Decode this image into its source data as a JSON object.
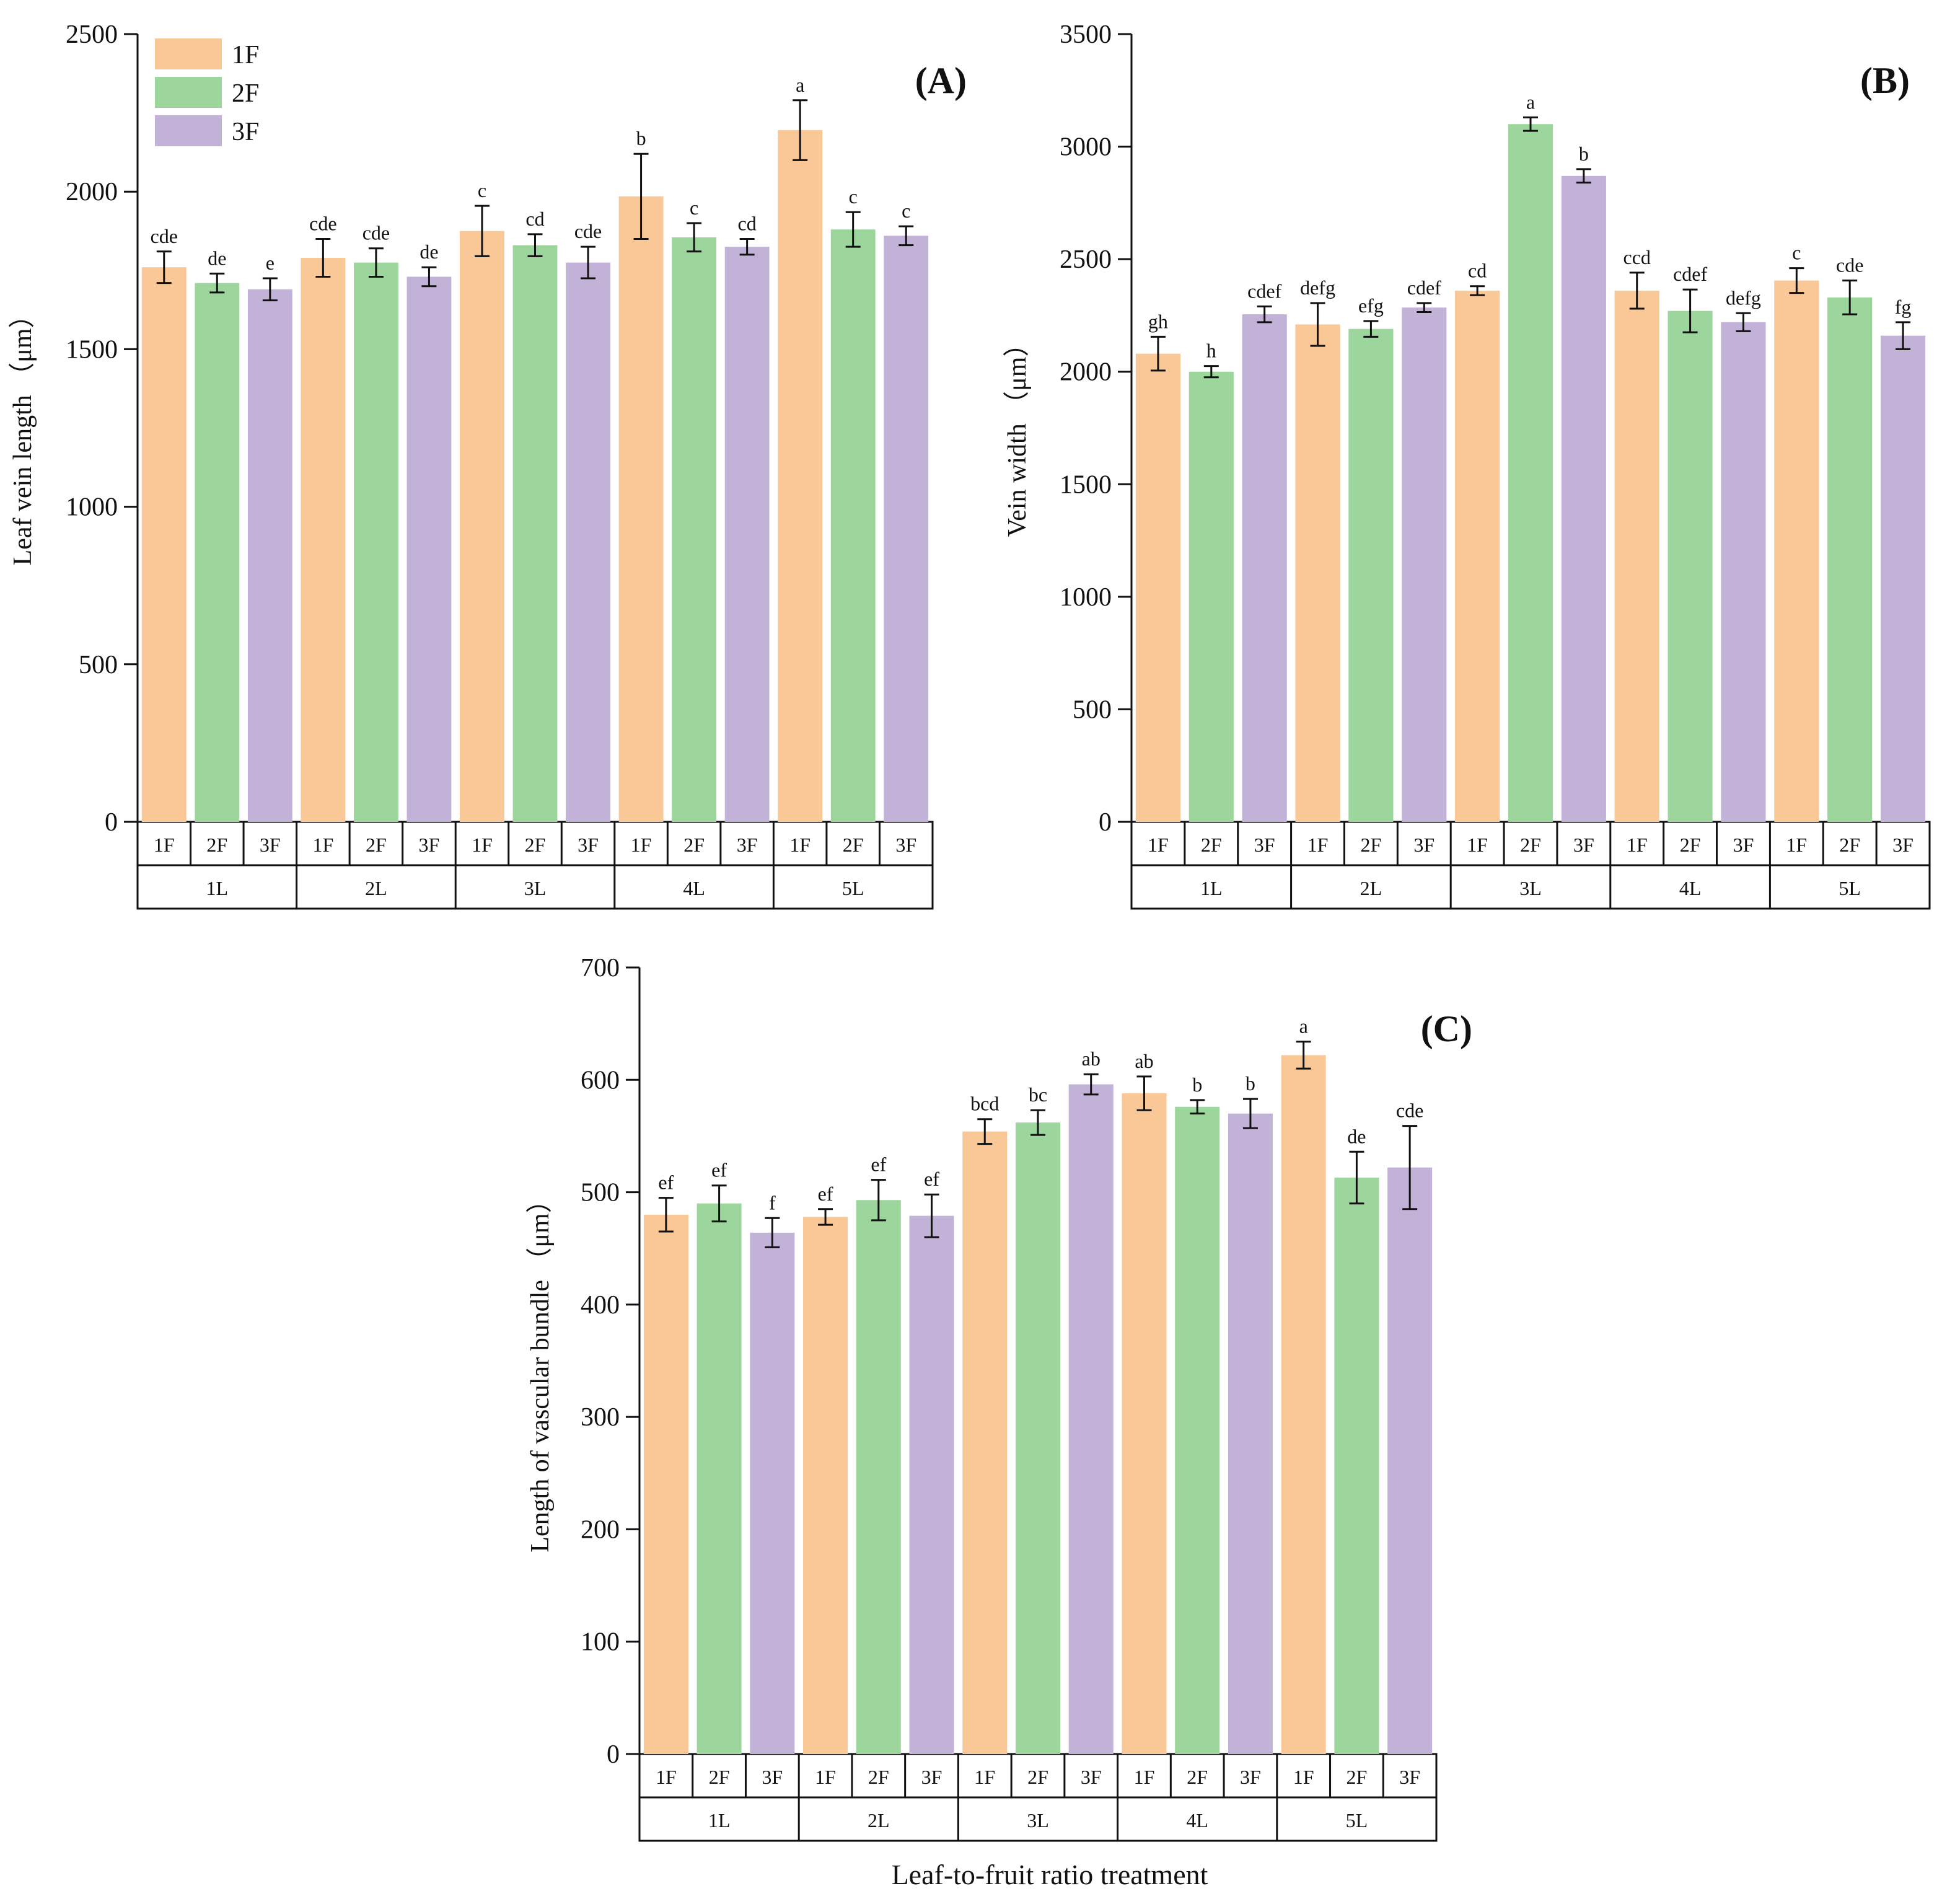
{
  "colors": {
    "1F": "#fac796",
    "2F": "#9cd69c",
    "3F": "#c3b2d8",
    "axis": "#111111"
  },
  "legend": [
    "1F",
    "2F",
    "3F"
  ],
  "x_title": "Leaf-to-fruit ratio treatment",
  "chart_data": [
    {
      "id": "A",
      "type": "bar",
      "panel_label": "(A)",
      "ylabel": "Leaf vein length （μm）",
      "ylim": [
        0,
        2500
      ],
      "yticks": [
        0,
        500,
        1000,
        1500,
        2000,
        2500
      ],
      "groups": [
        "1L",
        "2L",
        "3L",
        "4L",
        "5L"
      ],
      "subcategories": [
        "1F",
        "2F",
        "3F"
      ],
      "series": [
        {
          "name": "1F",
          "values": [
            1760,
            1790,
            1875,
            1985,
            2195
          ],
          "errors": [
            50,
            60,
            80,
            135,
            95
          ],
          "letters": [
            "cde",
            "cde",
            "c",
            "b",
            "a"
          ]
        },
        {
          "name": "2F",
          "values": [
            1710,
            1775,
            1830,
            1855,
            1880
          ],
          "errors": [
            30,
            45,
            35,
            45,
            55
          ],
          "letters": [
            "de",
            "cde",
            "cd",
            "c",
            "c"
          ]
        },
        {
          "name": "3F",
          "values": [
            1690,
            1730,
            1775,
            1825,
            1860
          ],
          "errors": [
            35,
            30,
            50,
            25,
            30
          ],
          "letters": [
            "e",
            "de",
            "cde",
            "cd",
            "c"
          ]
        }
      ]
    },
    {
      "id": "B",
      "type": "bar",
      "panel_label": "(B)",
      "ylabel": "Vein width （μm）",
      "ylim": [
        0,
        3500
      ],
      "yticks": [
        0,
        500,
        1000,
        1500,
        2000,
        2500,
        3000,
        3500
      ],
      "groups": [
        "1L",
        "2L",
        "3L",
        "4L",
        "5L"
      ],
      "subcategories": [
        "1F",
        "2F",
        "3F"
      ],
      "series": [
        {
          "name": "1F",
          "values": [
            2080,
            2210,
            2360,
            2360,
            2405
          ],
          "errors": [
            75,
            95,
            20,
            80,
            55
          ],
          "letters": [
            "gh",
            "defg",
            "cd",
            "ccd",
            "c"
          ]
        },
        {
          "name": "2F",
          "values": [
            2000,
            2190,
            3100,
            2270,
            2330
          ],
          "errors": [
            25,
            35,
            30,
            95,
            75
          ],
          "letters": [
            "h",
            "efg",
            "a",
            "cdef",
            "cde"
          ]
        },
        {
          "name": "3F",
          "values": [
            2255,
            2285,
            2870,
            2220,
            2160
          ],
          "errors": [
            35,
            20,
            30,
            40,
            60
          ],
          "letters": [
            "cdef",
            "cdef",
            "b",
            "defg",
            "fg"
          ]
        }
      ]
    },
    {
      "id": "C",
      "type": "bar",
      "panel_label": "(C)",
      "ylabel": "Length of vascular bundle （μm）",
      "ylim": [
        0,
        700
      ],
      "yticks": [
        0,
        100,
        200,
        300,
        400,
        500,
        600,
        700
      ],
      "groups": [
        "1L",
        "2L",
        "3L",
        "4L",
        "5L"
      ],
      "subcategories": [
        "1F",
        "2F",
        "3F"
      ],
      "series": [
        {
          "name": "1F",
          "values": [
            480,
            478,
            554,
            588,
            622
          ],
          "errors": [
            15,
            7,
            11,
            15,
            12
          ],
          "letters": [
            "ef",
            "ef",
            "bcd",
            "ab",
            "a"
          ]
        },
        {
          "name": "2F",
          "values": [
            490,
            493,
            562,
            576,
            513
          ],
          "errors": [
            16,
            18,
            11,
            6,
            23
          ],
          "letters": [
            "ef",
            "ef",
            "bc",
            "b",
            "de"
          ]
        },
        {
          "name": "3F",
          "values": [
            464,
            479,
            596,
            570,
            522
          ],
          "errors": [
            13,
            19,
            9,
            13,
            37
          ],
          "letters": [
            "f",
            "ef",
            "ab",
            "b",
            "cde"
          ]
        }
      ]
    }
  ]
}
